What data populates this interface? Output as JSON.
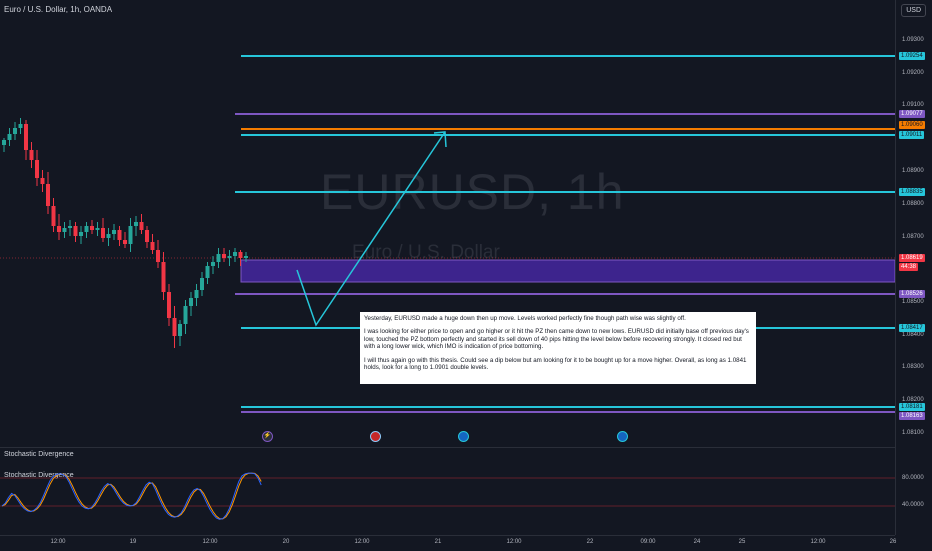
{
  "header": {
    "symbol_title": "Euro / U.S. Dollar, 1h, OANDA",
    "currency_button": "USD"
  },
  "watermark": {
    "main": "EURUSD, 1h",
    "sub": "Euro / U.S. Dollar"
  },
  "price_ticks": [
    "1.09300",
    "1.09200",
    "1.09100",
    "1.08900",
    "1.08800",
    "1.08700",
    "1.08500",
    "1.08400",
    "1.08300",
    "1.08200",
    "1.08100"
  ],
  "price_labels": [
    {
      "text": "1.09254",
      "color": "#26c6da"
    },
    {
      "text": "1.09077",
      "color": "#7e57c2"
    },
    {
      "text": "1.09060",
      "color": "#f57c00"
    },
    {
      "text": "1.09011",
      "color": "#26c6da"
    },
    {
      "text": "1.08835",
      "color": "#26c6da"
    },
    {
      "text": "1.08619",
      "color": "#f23645"
    },
    {
      "text": "44:38",
      "color": "#f23645"
    },
    {
      "text": "1.08526",
      "color": "#7e57c2"
    },
    {
      "text": "1.08417",
      "color": "#26c6da"
    },
    {
      "text": "1.08181",
      "color": "#26c6da"
    },
    {
      "text": "1.08163",
      "color": "#7e57c2"
    }
  ],
  "note": {
    "paragraphs": [
      "Yesterday, EURUSD made a huge down then up move. Levels worked perfectly fine though path wise was slightly off.",
      "I was looking for either price to open and go higher or it hit the PZ then came down to new lows. EURUSD did initially base off previous day's low, touched the PZ bottom perfectly and started its sell down of 40 pips hitting the level below before recovering strongly. It closed red but with a long lower wick, which IMO is indication of price bottoming.",
      "I will thus again go with this thesis. Could see a dip below but am looking for it to be bought up for a move higher. Overall, as long as 1.0841 holds, look for a long to 1.0901 double levels."
    ]
  },
  "indicator": {
    "pane_title": "Stochastic Divergence",
    "series_title": "Stochastic Divergence",
    "ticks": [
      "80.0000",
      "40.0000"
    ],
    "k_values": [
      40,
      44,
      52,
      58,
      55,
      48,
      41,
      36,
      33,
      32,
      34,
      38,
      45,
      55,
      66,
      76,
      82,
      85,
      86,
      85,
      82,
      74,
      64,
      54,
      46,
      40,
      37,
      36,
      38,
      44,
      52,
      61,
      68,
      72,
      70,
      64,
      56,
      49,
      44,
      41,
      40,
      41,
      45,
      53,
      62,
      70,
      74,
      72,
      63,
      52,
      42,
      34,
      28,
      25,
      24,
      26,
      30,
      38,
      48,
      57,
      63,
      65,
      62,
      54,
      44,
      35,
      28,
      23,
      21,
      22,
      27,
      36,
      48,
      62,
      75,
      83,
      86,
      87,
      87,
      86,
      80,
      70
    ]
  },
  "time_axis": [
    "12:00",
    "19",
    "12:00",
    "20",
    "12:00",
    "21",
    "12:00",
    "22",
    "09:00",
    "24",
    "25",
    "12:00",
    "26"
  ],
  "colors": {
    "bull": "#26a69a",
    "bear": "#f23645",
    "cyan_level": "#26c6da",
    "purple_level": "#7e57c2",
    "orange_level": "#f57c00",
    "zone": "#4527a0",
    "background": "#131722"
  }
}
